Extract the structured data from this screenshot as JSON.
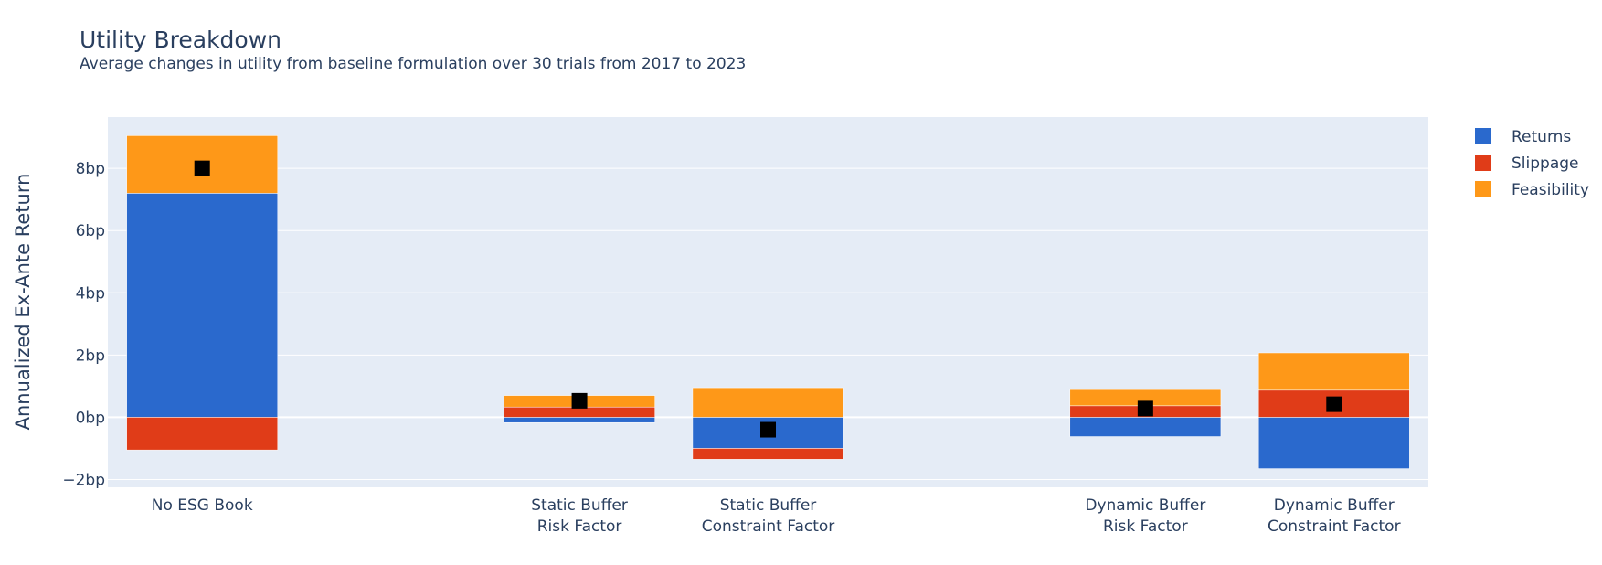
{
  "chart_data": {
    "type": "bar",
    "barmode": "relative",
    "title": "Utility Breakdown",
    "subtitle": "Average changes in utility from baseline formulation over 30 trials from 2017 to 2023",
    "xlabel": "",
    "ylabel": "Annualized Ex-Ante Return",
    "ylim": [
      -2.25,
      9.65
    ],
    "yticks": [
      -2,
      0,
      2,
      4,
      6,
      8
    ],
    "ytick_labels": [
      "−2bp",
      "0bp",
      "2bp",
      "4bp",
      "6bp",
      "8bp"
    ],
    "grid": true,
    "legend_position": "top-right",
    "categories": [
      [
        "No ESG Book"
      ],
      [],
      [
        "Static Buffer",
        "Risk Factor"
      ],
      [
        "Static Buffer",
        "Constraint Factor"
      ],
      [],
      [
        "Dynamic Buffer",
        "Risk Factor"
      ],
      [
        "Dynamic Buffer",
        "Constraint Factor"
      ]
    ],
    "series": [
      {
        "name": "Returns",
        "color": "#2a69cd",
        "values": [
          7.2,
          null,
          -0.17,
          -1.0,
          null,
          -0.62,
          -1.65
        ]
      },
      {
        "name": "Slippage",
        "color": "#e03c18",
        "values": [
          -1.05,
          null,
          0.33,
          -0.35,
          null,
          0.37,
          0.87
        ]
      },
      {
        "name": "Feasibility",
        "color": "#fe9818",
        "values": [
          1.85,
          null,
          0.37,
          0.95,
          null,
          0.52,
          1.2
        ]
      }
    ],
    "totals": {
      "name": "Total",
      "color": "#000000",
      "marker": "square",
      "values": [
        8.0,
        null,
        0.53,
        -0.4,
        null,
        0.28,
        0.42
      ]
    }
  }
}
